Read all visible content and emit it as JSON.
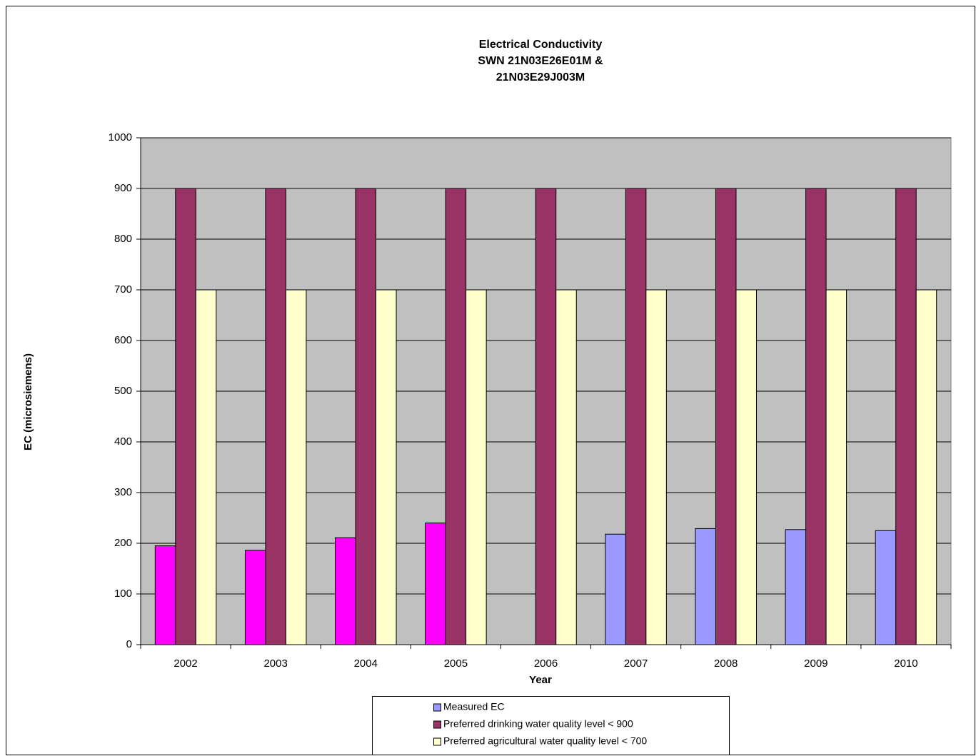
{
  "chart_data": {
    "type": "bar",
    "title": [
      "Electrical Conductivity",
      "SWN 21N03E26E01M &",
      "21N03E29J003M"
    ],
    "y_label": "EC (microsiemens)",
    "x_label": "Year",
    "categories": [
      "2002",
      "2003",
      "2004",
      "2005",
      "2006",
      "2007",
      "2008",
      "2009",
      "2010"
    ],
    "series": [
      {
        "name": "Measured EC",
        "color": "#9999ff",
        "point_colors": [
          "#ff00ff",
          "#ff00ff",
          "#ff00ff",
          "#ff00ff",
          "#9999ff",
          "#9999ff",
          "#9999ff",
          "#9999ff",
          "#9999ff"
        ],
        "values": [
          195,
          186,
          211,
          240,
          null,
          218,
          229,
          227,
          225
        ]
      },
      {
        "name": "Preferred drinking water quality level < 900",
        "color": "#993366",
        "values": [
          900,
          900,
          900,
          900,
          900,
          900,
          900,
          900,
          900
        ]
      },
      {
        "name": "Preferred agricultural water quality level < 700",
        "color": "#ffffcc",
        "values": [
          700,
          700,
          700,
          700,
          700,
          700,
          700,
          700,
          700
        ]
      }
    ],
    "ylim": [
      0,
      1000
    ],
    "yticks": [
      0,
      100,
      200,
      300,
      400,
      500,
      600,
      700,
      800,
      900,
      1000
    ],
    "grid": true,
    "plot_background": "#c0c0c0"
  }
}
